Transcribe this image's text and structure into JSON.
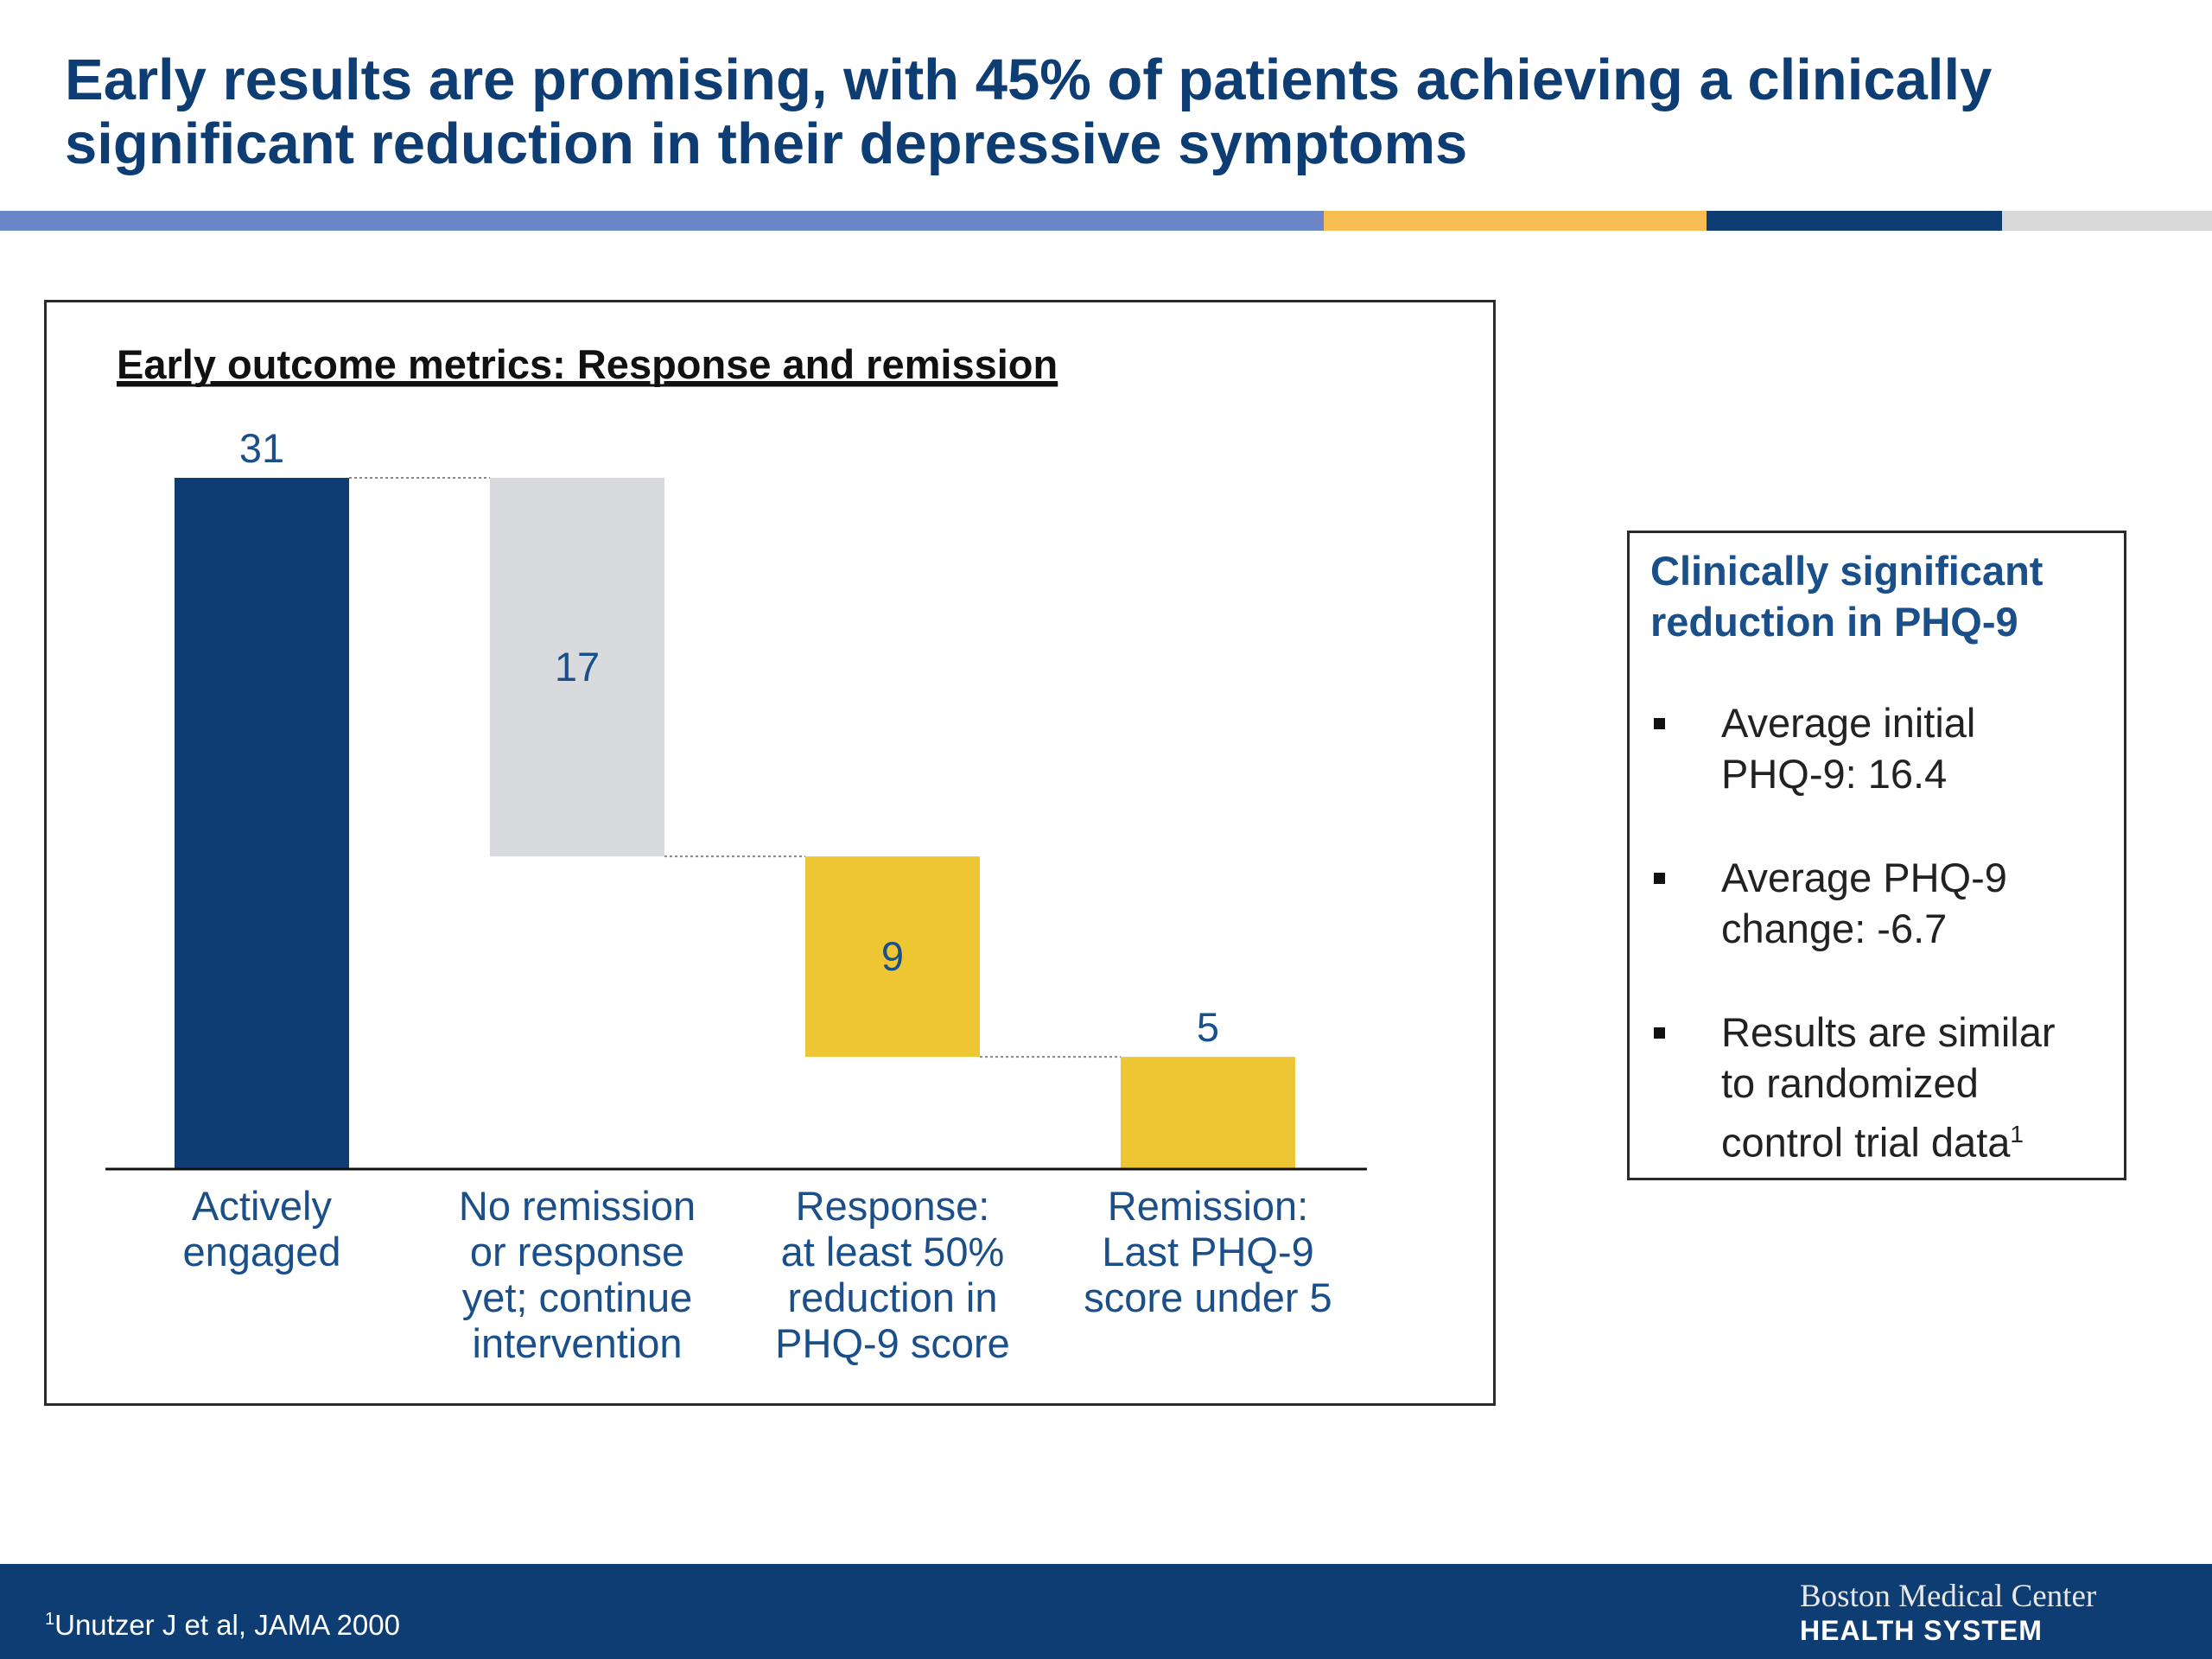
{
  "title": {
    "line1": "Early results are promising, with 45% of patients achieving a clinically",
    "line2": "significant reduction in their depressive symptoms"
  },
  "colors": {
    "title": "#0d3d73",
    "stripe_blue_light": "#6b86c6",
    "stripe_gold": "#f5bd52",
    "stripe_navy": "#0d3d73",
    "stripe_gray": "#d9d9d9",
    "bar_navy": "#0d3d73",
    "bar_gray": "#d9dadd",
    "bar_gold": "#eec532"
  },
  "chart_data": {
    "type": "bar",
    "subtype": "waterfall",
    "title": "Early outcome metrics:  Response and remission",
    "categories": [
      [
        "Actively",
        "engaged"
      ],
      [
        "No remission",
        "or response",
        "yet; continue",
        "intervention"
      ],
      [
        "Response:",
        "at least 50%",
        "reduction in",
        "PHQ-9 score"
      ],
      [
        "Remission:",
        "Last PHQ-9",
        "score under 5"
      ]
    ],
    "values": [
      31,
      17,
      9,
      5
    ],
    "bar_ranges": [
      [
        0,
        31
      ],
      [
        14,
        31
      ],
      [
        5,
        14
      ],
      [
        0,
        5
      ]
    ],
    "data_labels": [
      "31",
      "17",
      "9",
      "5"
    ],
    "label_position": [
      "above",
      "inside",
      "inside",
      "above"
    ],
    "bar_colors": [
      "#0d3d73",
      "#d9dadd",
      "#eec532",
      "#eec532"
    ],
    "ylim": [
      0,
      31
    ],
    "grid": false,
    "connector_lines": true
  },
  "panel": {
    "title": [
      "Clinically significant",
      "reduction in PHQ-9"
    ],
    "bullets": [
      [
        "Average initial",
        "PHQ-9:  16.4"
      ],
      [
        "Average PHQ-9",
        "change:  -6.7"
      ],
      [
        "Results are similar",
        "to randomized",
        "control trial data"
      ]
    ],
    "bullet3_sup": "1"
  },
  "footer": {
    "footnote_sup": "1",
    "footnote": "Unutzer J et al, JAMA 2000",
    "logo_line1": "Boston Medical Center",
    "logo_line2": "HEALTH SYSTEM"
  }
}
